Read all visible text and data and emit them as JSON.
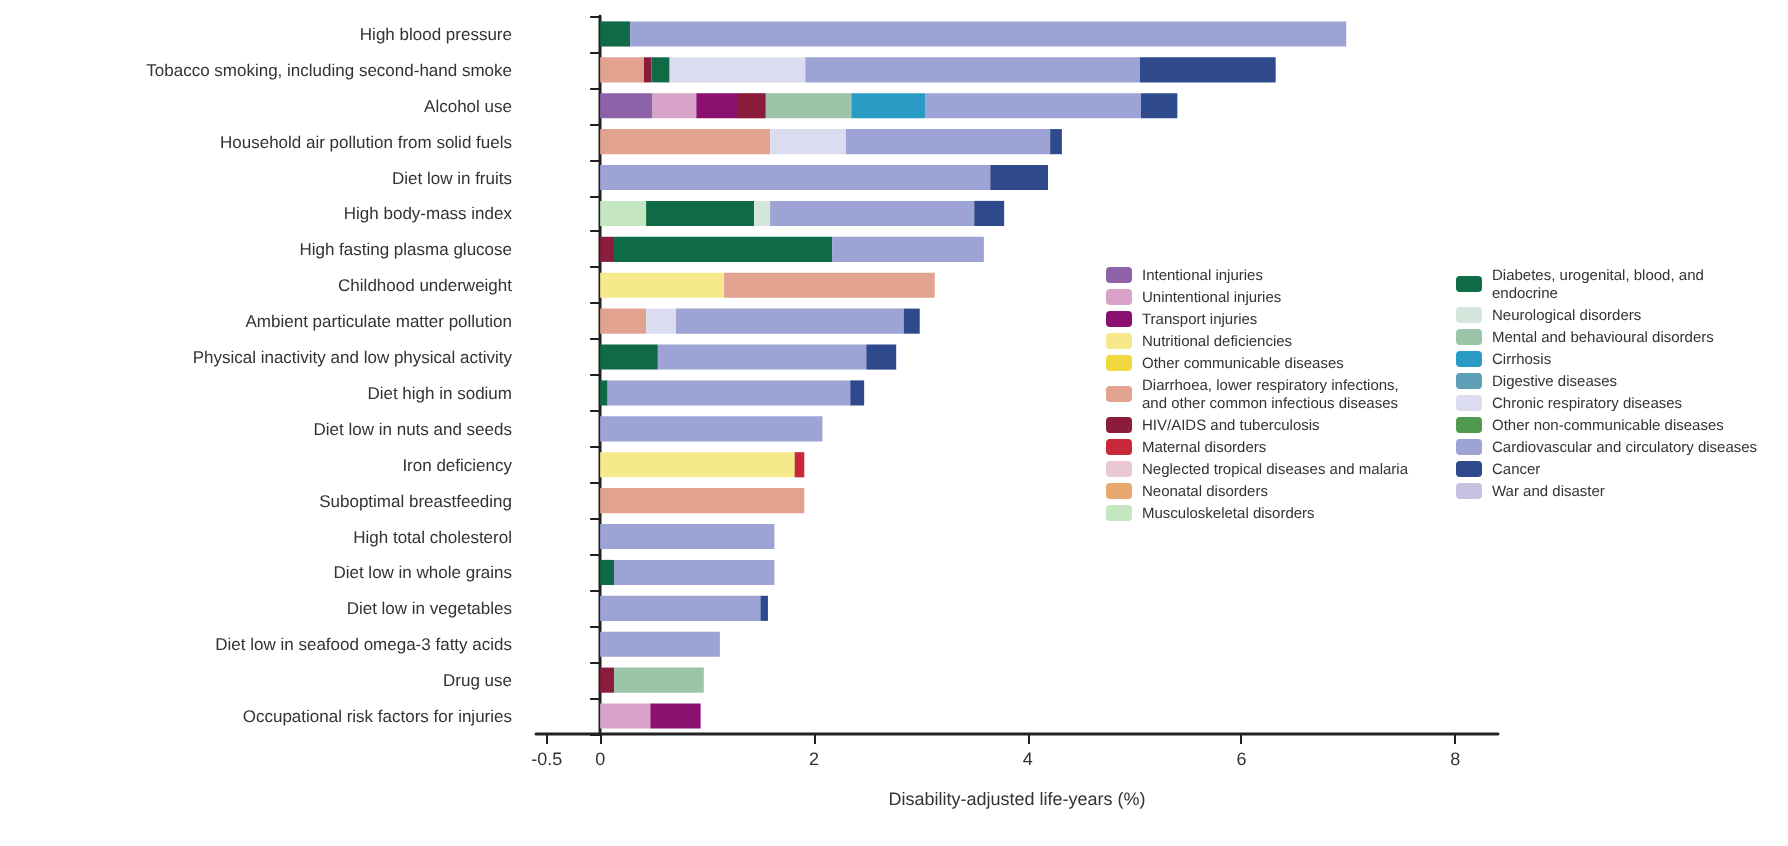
{
  "chart_data": {
    "type": "bar",
    "orientation": "horizontal",
    "stacked": true,
    "legend": "right",
    "xlabel": "Disability-adjusted life-years (%)",
    "xlim": [
      -0.6,
      8.4
    ],
    "xticks": [
      -0.5,
      0,
      2,
      4,
      6,
      8
    ],
    "categories": [
      "High blood pressure",
      "Tobacco smoking, including second-hand smoke",
      "Alcohol use",
      "Household air pollution from solid fuels",
      "Diet low in fruits",
      "High body-mass index",
      "High fasting plasma glucose",
      "Childhood underweight",
      "Ambient particulate matter pollution",
      "Physical inactivity and low physical activity",
      "Diet high in sodium",
      "Diet low in nuts and seeds",
      "Iron deficiency",
      "Suboptimal breastfeeding",
      "High total cholesterol",
      "Diet low in whole grains",
      "Diet low in vegetables",
      "Diet low in seafood omega-3 fatty acids",
      "Drug use",
      "Occupational risk factors for injuries"
    ],
    "series": [
      {
        "name": "Intentional injuries",
        "color": "#8e62a8",
        "values": [
          null,
          null,
          0.49,
          null,
          null,
          null,
          null,
          null,
          null,
          null,
          null,
          null,
          null,
          null,
          null,
          null,
          null,
          null,
          null,
          null
        ]
      },
      {
        "name": "Unintentional injuries",
        "color": "#d9a3c9",
        "values": [
          null,
          null,
          0.41,
          null,
          null,
          null,
          null,
          null,
          null,
          null,
          null,
          null,
          null,
          null,
          null,
          null,
          null,
          null,
          null,
          0.47
        ]
      },
      {
        "name": "Transport injuries",
        "color": "#8a1070",
        "values": [
          null,
          null,
          0.39,
          null,
          null,
          null,
          null,
          null,
          null,
          null,
          null,
          null,
          null,
          null,
          null,
          null,
          null,
          null,
          null,
          0.47
        ]
      },
      {
        "name": "Nutritional deficiencies",
        "color": "#f6e98c",
        "values": [
          null,
          null,
          null,
          null,
          null,
          null,
          null,
          1.16,
          null,
          null,
          null,
          null,
          1.82,
          null,
          null,
          null,
          null,
          null,
          null,
          null
        ]
      },
      {
        "name": "Other communicable diseases",
        "color": "#f0d840",
        "values": [
          null,
          null,
          null,
          null,
          null,
          null,
          null,
          null,
          null,
          null,
          null,
          null,
          null,
          null,
          null,
          null,
          null,
          null,
          null,
          null
        ]
      },
      {
        "name": "Diarrhoea, lower respiratory infections, and other common infectious diseases",
        "color": "#e2a290",
        "values": [
          null,
          0.41,
          null,
          1.59,
          null,
          null,
          null,
          1.97,
          0.43,
          null,
          null,
          null,
          null,
          1.91,
          null,
          null,
          null,
          null,
          null,
          null
        ]
      },
      {
        "name": "HIV/AIDS and tuberculosis",
        "color": "#8c1c3c",
        "values": [
          null,
          0.07,
          0.26,
          null,
          null,
          null,
          0.13,
          null,
          null,
          null,
          null,
          null,
          null,
          null,
          null,
          null,
          null,
          null,
          0.13,
          null
        ]
      },
      {
        "name": "Maternal disorders",
        "color": "#c82838",
        "values": [
          null,
          null,
          null,
          null,
          null,
          null,
          null,
          null,
          null,
          null,
          null,
          null,
          0.09,
          null,
          null,
          null,
          null,
          null,
          null,
          null
        ]
      },
      {
        "name": "Neglected tropical diseases and malaria",
        "color": "#e8c8d2",
        "values": [
          null,
          null,
          null,
          null,
          null,
          null,
          null,
          null,
          null,
          null,
          null,
          null,
          null,
          null,
          null,
          null,
          null,
          null,
          null,
          null
        ]
      },
      {
        "name": "Neonatal disorders",
        "color": "#e8a870",
        "values": [
          null,
          null,
          null,
          null,
          null,
          null,
          null,
          null,
          null,
          null,
          null,
          null,
          null,
          null,
          null,
          null,
          null,
          null,
          null,
          null
        ]
      },
      {
        "name": "Musculoskeletal disorders",
        "color": "#c4e6c0",
        "values": [
          null,
          null,
          null,
          null,
          null,
          0.43,
          null,
          null,
          null,
          null,
          null,
          null,
          null,
          null,
          null,
          null,
          null,
          null,
          null,
          null
        ]
      },
      {
        "name": "Diabetes, urogenital, blood, and endocrine",
        "color": "#0e6b45",
        "values": [
          0.28,
          0.17,
          null,
          null,
          null,
          1.01,
          2.04,
          null,
          null,
          0.54,
          0.07,
          null,
          null,
          null,
          null,
          0.13,
          null,
          null,
          null,
          null
        ]
      },
      {
        "name": "Neurological disorders",
        "color": "#d4e6dc",
        "values": [
          null,
          null,
          null,
          null,
          null,
          0.15,
          null,
          null,
          null,
          null,
          null,
          null,
          null,
          null,
          null,
          null,
          null,
          null,
          null,
          null
        ]
      },
      {
        "name": "Mental and behavioural disorders",
        "color": "#9cc4a8",
        "values": [
          null,
          null,
          0.8,
          null,
          null,
          null,
          null,
          null,
          null,
          null,
          null,
          null,
          null,
          null,
          null,
          null,
          null,
          null,
          0.84,
          null
        ]
      },
      {
        "name": "Cirrhosis",
        "color": "#2a9bc4",
        "values": [
          null,
          null,
          0.69,
          null,
          null,
          null,
          null,
          null,
          null,
          null,
          null,
          null,
          null,
          null,
          null,
          null,
          null,
          null,
          null,
          null
        ]
      },
      {
        "name": "Digestive diseases",
        "color": "#5e9fb8",
        "values": [
          null,
          null,
          null,
          null,
          null,
          null,
          null,
          null,
          null,
          null,
          null,
          null,
          null,
          null,
          null,
          null,
          null,
          null,
          null,
          null
        ]
      },
      {
        "name": "Chronic respiratory diseases",
        "color": "#dcdcf0",
        "values": [
          null,
          1.27,
          null,
          0.71,
          null,
          null,
          null,
          null,
          0.28,
          null,
          null,
          null,
          null,
          null,
          null,
          null,
          null,
          null,
          null,
          null
        ]
      },
      {
        "name": "Other non-communicable diseases",
        "color": "#4f9a50",
        "values": [
          null,
          null,
          null,
          null,
          null,
          null,
          null,
          null,
          null,
          null,
          null,
          null,
          null,
          null,
          null,
          null,
          null,
          null,
          null,
          null
        ]
      },
      {
        "name": "Cardiovascular and circulatory diseases",
        "color": "#9ea3d6",
        "values": [
          6.7,
          3.13,
          2.02,
          1.91,
          3.65,
          1.91,
          1.42,
          null,
          2.13,
          1.95,
          2.27,
          2.08,
          null,
          null,
          1.63,
          1.5,
          1.5,
          1.12,
          null,
          null
        ]
      },
      {
        "name": "Cancer",
        "color": "#2e4a8c",
        "values": [
          null,
          1.27,
          0.34,
          0.11,
          0.54,
          0.28,
          null,
          null,
          0.15,
          0.28,
          0.13,
          null,
          null,
          null,
          null,
          null,
          0.07,
          null,
          null,
          null
        ]
      },
      {
        "name": "War and disaster",
        "color": "#c8c0e0",
        "values": [
          null,
          null,
          null,
          null,
          null,
          null,
          null,
          null,
          null,
          null,
          null,
          null,
          null,
          null,
          null,
          null,
          null,
          null,
          null,
          null
        ]
      }
    ]
  }
}
